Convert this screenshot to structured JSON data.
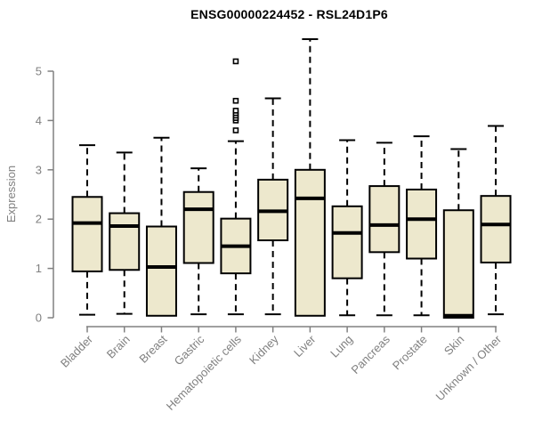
{
  "figure": {
    "title": "ENSG00000224452 - RSL24D1P6",
    "ylabel": "Expression"
  },
  "colors": {
    "background": "#ffffff",
    "box_fill": "#EDE8CD",
    "box_stroke": "#000000",
    "median_stroke": "#000000",
    "whisker_stroke": "#000000",
    "axis": "#808080",
    "tick_text": "#808080",
    "category_text": "#808080",
    "title_text": "#000000"
  },
  "chart_data": {
    "type": "boxplot",
    "title": "ENSG00000224452 - RSL24D1P6",
    "xlabel": "",
    "ylabel": "Expression",
    "ylim": [
      0,
      5.7
    ],
    "yticks": [
      0,
      1,
      2,
      3,
      4,
      5
    ],
    "grid": false,
    "legend": "none",
    "whisker_style": "dashed",
    "categories": [
      "Bladder",
      "Brain",
      "Breast",
      "Gastric",
      "Hematopoietic cells",
      "Kidney",
      "Liver",
      "Lung",
      "Pancreas",
      "Prostate",
      "Skin",
      "Unknown / Other"
    ],
    "series": [
      {
        "name": "Bladder",
        "low": 0.06,
        "q1": 0.94,
        "median": 1.92,
        "q3": 2.45,
        "high": 3.5,
        "outliers": []
      },
      {
        "name": "Brain",
        "low": 0.08,
        "q1": 0.97,
        "median": 1.86,
        "q3": 2.12,
        "high": 3.35,
        "outliers": []
      },
      {
        "name": "Breast",
        "low": 0.04,
        "q1": 0.04,
        "median": 1.03,
        "q3": 1.85,
        "high": 3.65,
        "outliers": []
      },
      {
        "name": "Gastric",
        "low": 0.07,
        "q1": 1.11,
        "median": 2.2,
        "q3": 2.55,
        "high": 3.03,
        "outliers": []
      },
      {
        "name": "Hematopoietic cells",
        "low": 0.07,
        "q1": 0.9,
        "median": 1.45,
        "q3": 2.01,
        "high": 3.58,
        "outliers": [
          3.8,
          4.0,
          4.05,
          4.1,
          4.15,
          4.2,
          4.4,
          5.2
        ]
      },
      {
        "name": "Kidney",
        "low": 0.07,
        "q1": 1.57,
        "median": 2.16,
        "q3": 2.8,
        "high": 4.45,
        "outliers": []
      },
      {
        "name": "Liver",
        "low": 0.04,
        "q1": 0.04,
        "median": 2.42,
        "q3": 3.0,
        "high": 5.65,
        "outliers": []
      },
      {
        "name": "Lung",
        "low": 0.05,
        "q1": 0.8,
        "median": 1.72,
        "q3": 2.26,
        "high": 3.6,
        "outliers": []
      },
      {
        "name": "Pancreas",
        "low": 0.05,
        "q1": 1.33,
        "median": 1.88,
        "q3": 2.67,
        "high": 3.55,
        "outliers": []
      },
      {
        "name": "Prostate",
        "low": 0.05,
        "q1": 1.2,
        "median": 2.0,
        "q3": 2.6,
        "high": 3.68,
        "outliers": []
      },
      {
        "name": "Skin",
        "low": 0.0,
        "q1": 0.0,
        "median": 0.04,
        "q3": 2.18,
        "high": 3.42,
        "outliers": []
      },
      {
        "name": "Unknown / Other",
        "low": 0.07,
        "q1": 1.12,
        "median": 1.89,
        "q3": 2.47,
        "high": 3.89,
        "outliers": []
      }
    ]
  }
}
